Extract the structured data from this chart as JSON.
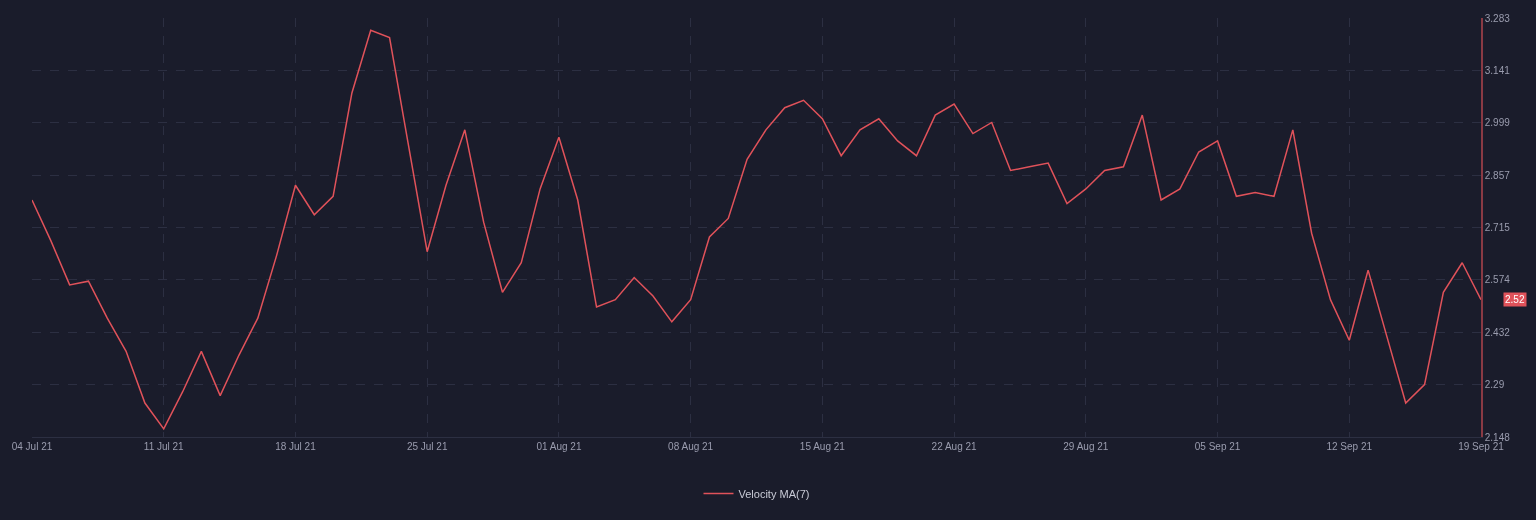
{
  "chart_data": {
    "type": "line",
    "x": [
      "--07-04",
      "--07-05",
      "--07-06",
      "--07-07",
      "--07-08",
      "--07-09",
      "--07-10",
      "--07-11",
      "--07-12",
      "--07-13",
      "--07-14",
      "--07-15",
      "--07-16",
      "--07-17",
      "--07-18",
      "--07-19",
      "--07-20",
      "--07-21",
      "--07-22",
      "--07-23",
      "--07-24",
      "--07-25",
      "--07-26",
      "--07-27",
      "--07-28",
      "--07-29",
      "--07-30",
      "--07-31",
      "--08-01",
      "--08-02",
      "--08-03",
      "--08-04",
      "--08-05",
      "--08-06",
      "--08-07",
      "--08-08",
      "--08-09",
      "--08-10",
      "--08-11",
      "--08-12",
      "--08-13",
      "--08-14",
      "--08-15",
      "--08-16",
      "--08-17",
      "--08-18",
      "--08-19",
      "--08-20",
      "--08-21",
      "--08-22",
      "--08-23",
      "--08-24",
      "--08-25",
      "--08-26",
      "--08-27",
      "--08-28",
      "--08-29",
      "--08-30",
      "--08-31",
      "--09-01",
      "--09-02",
      "--09-03",
      "--09-04",
      "--09-05",
      "--09-06",
      "--09-07",
      "--09-08",
      "--09-09",
      "--09-10",
      "--09-11",
      "--09-12",
      "--09-13",
      "--09-14",
      "--09-15",
      "--09-16",
      "--09-17",
      "--09-18",
      "--09-19"
    ],
    "series": [
      {
        "name": "Velocity MA(7)",
        "color": "#e0525a",
        "values": [
          2.79,
          2.68,
          2.56,
          2.57,
          2.47,
          2.38,
          2.24,
          2.17,
          2.27,
          2.38,
          2.26,
          2.37,
          2.47,
          2.64,
          2.83,
          2.75,
          2.8,
          3.08,
          3.25,
          3.23,
          2.94,
          2.65,
          2.83,
          2.98,
          2.73,
          2.54,
          2.62,
          2.82,
          2.96,
          2.79,
          2.5,
          2.52,
          2.58,
          2.53,
          2.46,
          2.52,
          2.69,
          2.74,
          2.9,
          2.98,
          3.04,
          3.06,
          3.01,
          2.91,
          2.98,
          3.01,
          2.95,
          2.91,
          3.02,
          3.05,
          2.97,
          3.0,
          2.87,
          2.88,
          2.89,
          2.78,
          2.82,
          2.87,
          2.88,
          3.02,
          2.79,
          2.82,
          2.92,
          2.95,
          2.8,
          2.81,
          2.8,
          2.98,
          2.7,
          2.52,
          2.41,
          2.6,
          2.42,
          2.24,
          2.29,
          2.54,
          2.62,
          2.52
        ]
      }
    ],
    "xlim": [
      "--07-04",
      "--09-19"
    ],
    "xticks": [
      {
        "value": "--07-04",
        "label": "04 Jul 21"
      },
      {
        "value": "--07-11",
        "label": "11 Jul 21"
      },
      {
        "value": "--07-18",
        "label": "18 Jul 21"
      },
      {
        "value": "--07-25",
        "label": "25 Jul 21"
      },
      {
        "value": "--08-01",
        "label": "01 Aug 21"
      },
      {
        "value": "--08-08",
        "label": "08 Aug 21"
      },
      {
        "value": "--08-15",
        "label": "15 Aug 21"
      },
      {
        "value": "--08-22",
        "label": "22 Aug 21"
      },
      {
        "value": "--08-29",
        "label": "29 Aug 21"
      },
      {
        "value": "--09-05",
        "label": "05 Sep 21"
      },
      {
        "value": "--09-12",
        "label": "12 Sep 21"
      },
      {
        "value": "--09-19",
        "label": "19 Sep 21"
      }
    ],
    "ylim": [
      2.148,
      3.283
    ],
    "yticks": [
      2.148,
      2.29,
      2.432,
      2.574,
      2.715,
      2.857,
      2.999,
      3.141,
      3.283
    ],
    "annotations": [
      {
        "text": "2.52",
        "x": "--09-19",
        "y": 2.52
      }
    ],
    "grid": true,
    "legend": "bottom",
    "marker": "none",
    "line_style": "solid"
  }
}
